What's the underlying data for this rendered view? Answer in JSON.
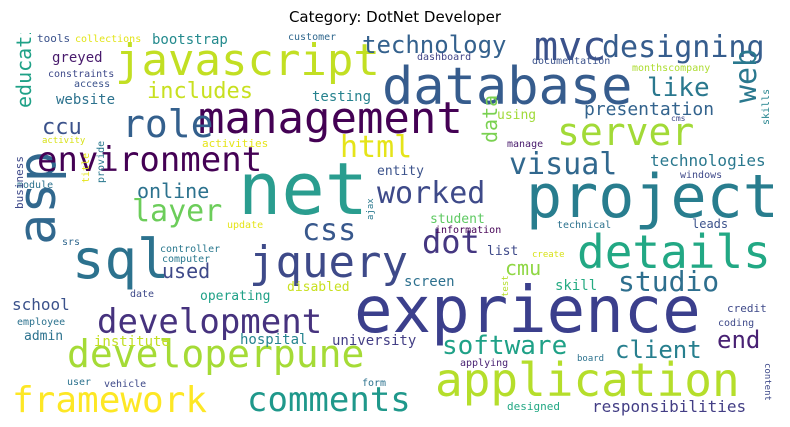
{
  "title": "Category: DotNet Developer",
  "words": [
    {
      "text": "net",
      "color": "#2a9d8f"
    },
    {
      "text": "exprience",
      "color": "#3b3f8c"
    },
    {
      "text": "project",
      "color": "#287d8e"
    },
    {
      "text": "database",
      "color": "#365c8d"
    },
    {
      "text": "application",
      "color": "#b5de2b"
    },
    {
      "text": "management",
      "color": "#440154"
    },
    {
      "text": "javascript",
      "color": "#c2df23"
    },
    {
      "text": "asp",
      "color": "#31688e"
    },
    {
      "text": "sql",
      "color": "#2c728e"
    },
    {
      "text": "jquery",
      "color": "#3e4a89"
    },
    {
      "text": "details",
      "color": "#22a884"
    },
    {
      "text": "developerpune",
      "color": "#a5db36"
    },
    {
      "text": "environment",
      "color": "#440154"
    },
    {
      "text": "development",
      "color": "#46327e"
    },
    {
      "text": "framework",
      "color": "#fde725"
    },
    {
      "text": "server",
      "color": "#a2da37"
    },
    {
      "text": "role",
      "color": "#34608d"
    },
    {
      "text": "mvc",
      "color": "#3b528b"
    },
    {
      "text": "designing",
      "color": "#365d8d"
    },
    {
      "text": "comments",
      "color": "#1f988b"
    },
    {
      "text": "worked",
      "color": "#3e4a89"
    },
    {
      "text": "visual",
      "color": "#31688e"
    },
    {
      "text": "dot",
      "color": "#453781"
    },
    {
      "text": "css",
      "color": "#38588c"
    },
    {
      "text": "layer",
      "color": "#6ccd5a"
    },
    {
      "text": "studio",
      "color": "#2e6f8e"
    },
    {
      "text": "html",
      "color": "#e5e419"
    },
    {
      "text": "technology",
      "color": "#34618d"
    },
    {
      "text": "web",
      "color": "#2a788e"
    },
    {
      "text": "like",
      "color": "#2a788e"
    },
    {
      "text": "software",
      "color": "#1fa187"
    },
    {
      "text": "client",
      "color": "#277f8e"
    },
    {
      "text": "end",
      "color": "#482173"
    },
    {
      "text": "includes",
      "color": "#c8e020"
    },
    {
      "text": "education",
      "color": "#1fa187"
    },
    {
      "text": "ccu",
      "color": "#3b528b"
    },
    {
      "text": "online",
      "color": "#2c728e"
    },
    {
      "text": "used",
      "color": "#3e4989"
    },
    {
      "text": "cmu",
      "color": "#8fd744"
    },
    {
      "text": "data",
      "color": "#7ad151"
    },
    {
      "text": "presentation",
      "color": "#33638d"
    },
    {
      "text": "technologies",
      "color": "#2a788e"
    },
    {
      "text": "responsibilities",
      "color": "#433e85"
    },
    {
      "text": "institute",
      "color": "#c2df23"
    },
    {
      "text": "hospital",
      "color": "#25848e"
    },
    {
      "text": "university",
      "color": "#433e85"
    },
    {
      "text": "school",
      "color": "#3b528b"
    },
    {
      "text": "website",
      "color": "#2c728e"
    },
    {
      "text": "bootstrap",
      "color": "#238a8d"
    },
    {
      "text": "greyed",
      "color": "#481a6c"
    },
    {
      "text": "testing",
      "color": "#26828e"
    },
    {
      "text": "screen",
      "color": "#2d708e"
    },
    {
      "text": "skill",
      "color": "#25ab82"
    },
    {
      "text": "operating",
      "color": "#1fa187"
    },
    {
      "text": "disabled",
      "color": "#c8e020"
    },
    {
      "text": "student",
      "color": "#5ec962"
    },
    {
      "text": "entity",
      "color": "#3b528b"
    },
    {
      "text": "using",
      "color": "#a0da39"
    },
    {
      "text": "list",
      "color": "#3e4989"
    },
    {
      "text": "admin",
      "color": "#2c728e"
    },
    {
      "text": "tools",
      "color": "#3b528b"
    },
    {
      "text": "collections",
      "color": "#e2e418"
    },
    {
      "text": "customer",
      "color": "#31688e"
    },
    {
      "text": "dashboard",
      "color": "#414487"
    },
    {
      "text": "documentation",
      "color": "#3b528b"
    },
    {
      "text": "monthscompany",
      "color": "#addc30"
    },
    {
      "text": "constraints",
      "color": "#3e4989"
    },
    {
      "text": "access",
      "color": "#3b528b"
    },
    {
      "text": "activity",
      "color": "#d8e219"
    },
    {
      "text": "activities",
      "color": "#e5e419"
    },
    {
      "text": "module",
      "color": "#2c728e"
    },
    {
      "text": "title",
      "color": "#e5e419"
    },
    {
      "text": "provide",
      "color": "#2a788e"
    },
    {
      "text": "business",
      "color": "#3e4989"
    },
    {
      "text": "srs",
      "color": "#31688e"
    },
    {
      "text": "update",
      "color": "#e5e419"
    },
    {
      "text": "controller",
      "color": "#2a788e"
    },
    {
      "text": "computer",
      "color": "#2a788e"
    },
    {
      "text": "ajax",
      "color": "#2a788e"
    },
    {
      "text": "information",
      "color": "#440154"
    },
    {
      "text": "manage",
      "color": "#481a6c"
    },
    {
      "text": "windows",
      "color": "#3e4989"
    },
    {
      "text": "technical",
      "color": "#2c728e"
    },
    {
      "text": "leads",
      "color": "#3b528b"
    },
    {
      "text": "create",
      "color": "#d8e219"
    },
    {
      "text": "test",
      "color": "#b5de2b"
    },
    {
      "text": "date",
      "color": "#3e4989"
    },
    {
      "text": "employee",
      "color": "#2c728e"
    },
    {
      "text": "credit",
      "color": "#3e4989"
    },
    {
      "text": "coding",
      "color": "#3e4989"
    },
    {
      "text": "skills",
      "color": "#25848e"
    },
    {
      "text": "cms",
      "color": "#3e4989"
    },
    {
      "text": "user",
      "color": "#2c728e"
    },
    {
      "text": "vehicle",
      "color": "#3e4989"
    },
    {
      "text": "form",
      "color": "#2c728e"
    },
    {
      "text": "applying",
      "color": "#482173"
    },
    {
      "text": "board",
      "color": "#2c728e"
    },
    {
      "text": "designed",
      "color": "#22a884"
    },
    {
      "text": "content",
      "color": "#3e4989"
    }
  ]
}
